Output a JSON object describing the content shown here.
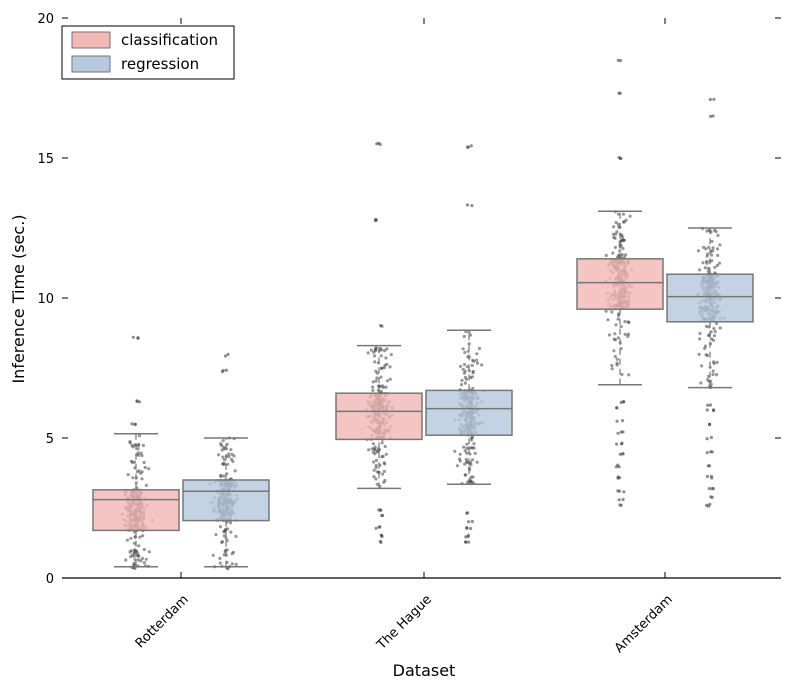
{
  "chart_data": {
    "type": "box",
    "xlabel": "Dataset",
    "ylabel": "Inference Time (sec.)",
    "ylim": [
      0,
      20
    ],
    "y_ticks": [
      0,
      5,
      10,
      15,
      20
    ],
    "categories": [
      "Rotterdam",
      "The Hague",
      "Amsterdam"
    ],
    "legend": {
      "placement": "top-left"
    },
    "colors": {
      "classification_fill": "#f2b8b6",
      "regression_fill": "#b6c9de",
      "box_edge": "#777777",
      "points": "#444444"
    },
    "series": [
      {
        "name": "classification",
        "boxes": [
          {
            "category": "Rotterdam",
            "q1": 1.7,
            "median": 2.8,
            "q3": 3.15,
            "whisker_low": 0.4,
            "whisker_high": 5.15,
            "outliers": [
              0.35,
              5.5,
              6.3,
              8.6
            ]
          },
          {
            "category": "The Hague",
            "q1": 4.95,
            "median": 5.95,
            "q3": 6.6,
            "whisker_low": 3.2,
            "whisker_high": 8.3,
            "outliers": [
              1.3,
              1.5,
              1.8,
              2.2,
              2.4,
              9.0,
              12.8,
              15.5
            ]
          },
          {
            "category": "Amsterdam",
            "q1": 9.6,
            "median": 10.55,
            "q3": 11.4,
            "whisker_low": 6.9,
            "whisker_high": 13.1,
            "outliers": [
              2.6,
              2.8,
              3.1,
              3.6,
              4.0,
              4.4,
              4.8,
              5.2,
              5.6,
              6.1,
              6.3,
              15.0,
              17.3,
              18.5
            ]
          }
        ]
      },
      {
        "name": "regression",
        "boxes": [
          {
            "category": "Rotterdam",
            "q1": 2.05,
            "median": 3.1,
            "q3": 3.5,
            "whisker_low": 0.4,
            "whisker_high": 5.0,
            "outliers": [
              0.35,
              7.4,
              7.95
            ]
          },
          {
            "category": "The Hague",
            "q1": 5.1,
            "median": 6.05,
            "q3": 6.7,
            "whisker_low": 3.35,
            "whisker_high": 8.85,
            "outliers": [
              1.3,
              1.5,
              1.8,
              2.0,
              2.3,
              13.3,
              15.4
            ]
          },
          {
            "category": "Amsterdam",
            "q1": 9.15,
            "median": 10.05,
            "q3": 10.85,
            "whisker_low": 6.8,
            "whisker_high": 12.5,
            "outliers": [
              2.6,
              2.9,
              3.2,
              3.6,
              4.0,
              4.5,
              5.0,
              5.5,
              6.0,
              6.2,
              16.5,
              17.1
            ]
          }
        ]
      }
    ]
  }
}
